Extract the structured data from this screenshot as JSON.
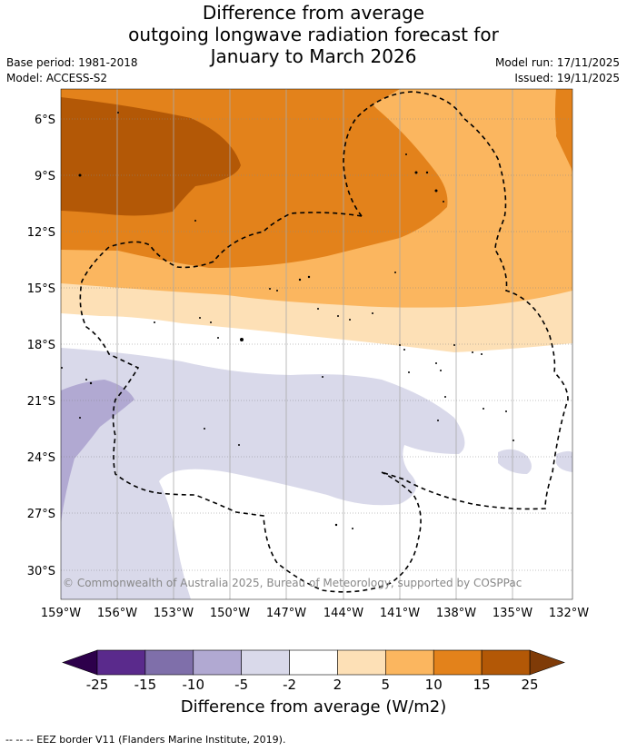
{
  "title": {
    "line1": "Difference from average",
    "line2": "outgoing longwave radiation forecast for",
    "line3": "January to March 2026"
  },
  "meta": {
    "base_period": "Base period: 1981-2018",
    "model": "Model: ACCESS-S2",
    "model_run": "Model run: 17/11/2025",
    "issued": "Issued: 19/11/2025"
  },
  "axes": {
    "lat_ticks": [
      "6°S",
      "9°S",
      "12°S",
      "15°S",
      "18°S",
      "21°S",
      "24°S",
      "27°S",
      "30°S"
    ],
    "lon_ticks": [
      "159°W",
      "156°W",
      "153°W",
      "150°W",
      "147°W",
      "144°W",
      "141°W",
      "138°W",
      "135°W",
      "132°W"
    ]
  },
  "copyright": "© Commonwealth of Australia 2025, Bureau of Meteorology, supported by COSPPac",
  "colorbar": {
    "ticks": [
      "-25",
      "-15",
      "-10",
      "-5",
      "-2",
      "2",
      "5",
      "10",
      "15",
      "25"
    ],
    "colors": [
      "#5a2a8c",
      "#7f6faa",
      "#b1a9d2",
      "#d9d9ea",
      "#ffffff",
      "#fde0b6",
      "#fbb65f",
      "#e3821b",
      "#b35806"
    ],
    "under_color": "#2d004b",
    "over_color": "#7f3b08",
    "label": "Difference from average (W/m2)"
  },
  "footer": "--  --  -- EEZ border V11 (Flanders Marine Institute, 2019)."
}
